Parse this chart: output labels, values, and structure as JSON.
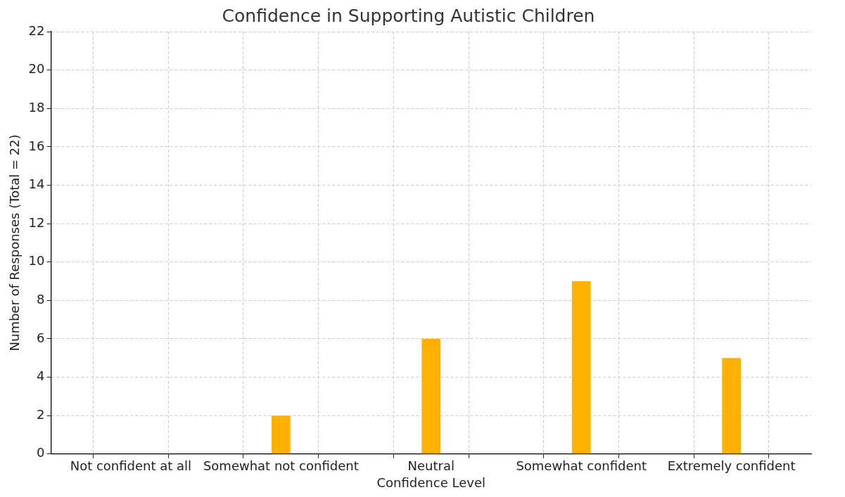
{
  "chart_data": {
    "type": "bar",
    "title": "Confidence in Supporting Autistic Children",
    "xlabel": "Confidence Level",
    "ylabel": "Number of Responses (Total = 22)",
    "categories": [
      "Not confident at all",
      "Somewhat not confident",
      "Neutral",
      "Somewhat confident",
      "Extremely confident"
    ],
    "values": [
      0,
      2,
      6,
      9,
      5
    ],
    "color": "#ffb000",
    "ylim": [
      0,
      22
    ],
    "yticks": [
      0,
      2,
      4,
      6,
      8,
      10,
      12,
      14,
      16,
      18,
      20,
      22
    ],
    "grid": true
  }
}
